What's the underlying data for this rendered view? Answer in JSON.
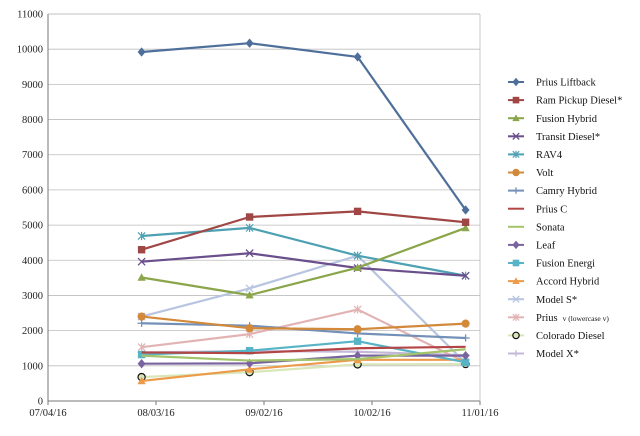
{
  "chart_data": {
    "type": "line",
    "title": "",
    "xlabel": "",
    "ylabel": "",
    "x": [
      "2016-07-30",
      "2016-08-29",
      "2016-09-28",
      "2016-10-28"
    ],
    "xlim": [
      "2016-07-04",
      "2016-11-01"
    ],
    "xticks": [
      "07/04/16",
      "08/03/16",
      "09/02/16",
      "10/02/16",
      "11/01/16"
    ],
    "ylim": [
      0,
      11000
    ],
    "yticks": [
      "0",
      "1000",
      "2000",
      "3000",
      "4000",
      "5000",
      "6000",
      "7000",
      "8000",
      "9000",
      "10000",
      "11000"
    ],
    "grid": "horizontal",
    "legend": "right",
    "series": [
      {
        "name": "Prius Liftback",
        "values": [
          9920,
          10170,
          9780,
          5430
        ],
        "color": "#4f6f9b",
        "marker": "diamond"
      },
      {
        "name": "Ram Pickup Diesel",
        "name_suffix": "*",
        "values": [
          4300,
          5230,
          5390,
          5080
        ],
        "color": "#a04745",
        "marker": "square"
      },
      {
        "name": "Fusion Hybrid",
        "values": [
          3510,
          3010,
          3790,
          4920
        ],
        "color": "#8aa54a",
        "marker": "triangle"
      },
      {
        "name": "Transit Diesel",
        "name_suffix": "*",
        "values": [
          3960,
          4200,
          3780,
          3560
        ],
        "color": "#6a4f8c",
        "marker": "x"
      },
      {
        "name": "RAV4",
        "values": [
          4690,
          4920,
          4130,
          3560
        ],
        "color": "#4da1b3",
        "marker": "asterisk"
      },
      {
        "name": "Volt",
        "values": [
          2400,
          2070,
          2040,
          2200
        ],
        "color": "#d3893a",
        "marker": "circle"
      },
      {
        "name": "Camry Hybrid",
        "values": [
          2210,
          2140,
          1920,
          1790
        ],
        "color": "#7390b8",
        "marker": "plus"
      },
      {
        "name": "Prius C",
        "values": [
          1380,
          1360,
          1500,
          1540
        ],
        "color": "#b44545",
        "marker": "none"
      },
      {
        "name": "Sonata",
        "values": [
          1290,
          1150,
          1190,
          1470
        ],
        "color": "#a3c46a",
        "marker": "none"
      },
      {
        "name": "Leaf",
        "values": [
          1060,
          1070,
          1290,
          1290
        ],
        "color": "#7a64a0",
        "marker": "diamond"
      },
      {
        "name": "Fusion Energi",
        "values": [
          1320,
          1430,
          1700,
          1100
        ],
        "color": "#57b3c6",
        "marker": "square"
      },
      {
        "name": "Accord Hybrid",
        "values": [
          570,
          900,
          1170,
          1170
        ],
        "color": "#ec9b4a",
        "marker": "triangle"
      },
      {
        "name": "Model S",
        "name_suffix": "*",
        "values": [
          2400,
          3200,
          4130,
          1080
        ],
        "color": "#b8c5e0",
        "marker": "x"
      },
      {
        "name": "Prius",
        "name_suffix": "v (lowercase v)",
        "values": [
          1530,
          1900,
          2600,
          1100
        ],
        "color": "#e2b3b3",
        "marker": "asterisk"
      },
      {
        "name": "Colorado Diesel",
        "values": [
          680,
          820,
          1040,
          1050
        ],
        "color": "#d8e6b8",
        "marker": "circle"
      },
      {
        "name": "Model X",
        "name_suffix": "*",
        "values": [
          1380,
          1420,
          1400,
          1300
        ],
        "color": "#c4b8d8",
        "marker": "plus"
      }
    ]
  }
}
